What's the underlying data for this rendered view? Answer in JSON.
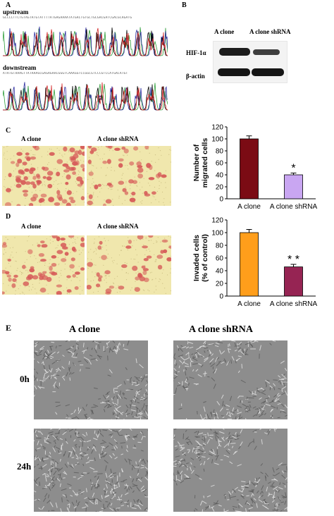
{
  "panel_A": {
    "label": "A",
    "upstream": {
      "title": "upstream"
    },
    "downstream": {
      "title": "downstream"
    }
  },
  "panel_B": {
    "label": "B",
    "col_labels": [
      "A clone",
      "A clone shRNA"
    ],
    "rows": [
      {
        "label": "HIF-1α"
      },
      {
        "label": "β-actin"
      }
    ]
  },
  "panel_C": {
    "label": "C",
    "image_labels": [
      "A clone",
      "A clone shRNA"
    ]
  },
  "panel_D": {
    "label": "D",
    "image_labels": [
      "A clone",
      "A clone shRNA"
    ]
  },
  "panel_E": {
    "label": "E",
    "col_labels": [
      "A clone",
      "A clone shRNA"
    ],
    "row_labels": [
      "0h",
      "24h"
    ]
  },
  "colors": {
    "bar_C_control": "#7b0b14",
    "bar_C_shrna": "#c9a6f2",
    "bar_D_control": "#ff9e1b",
    "bar_D_shrna": "#962453",
    "micro_bg": "#f0e7ad",
    "cell": "#d65a58"
  },
  "chart_data": [
    {
      "type": "bar",
      "categories": [
        "A clone",
        "A clone shRNA"
      ],
      "values": [
        100,
        40
      ],
      "errors": [
        5,
        3
      ],
      "significance": [
        "",
        "*"
      ],
      "ylabel": "Number of migrated cells",
      "ylim": [
        0,
        120
      ],
      "yticks": [
        "0",
        "20",
        "40",
        "60",
        "80",
        "100",
        "120"
      ]
    },
    {
      "type": "bar",
      "categories": [
        "A clone",
        "A clone shRNA"
      ],
      "values": [
        100,
        46
      ],
      "errors": [
        5,
        4
      ],
      "significance": [
        "",
        "* *"
      ],
      "ylabel": "Invaded cells (% of control)",
      "ylim": [
        0,
        120
      ],
      "yticks": [
        "0",
        "20",
        "40",
        "60",
        "80",
        "100",
        "120"
      ]
    }
  ]
}
